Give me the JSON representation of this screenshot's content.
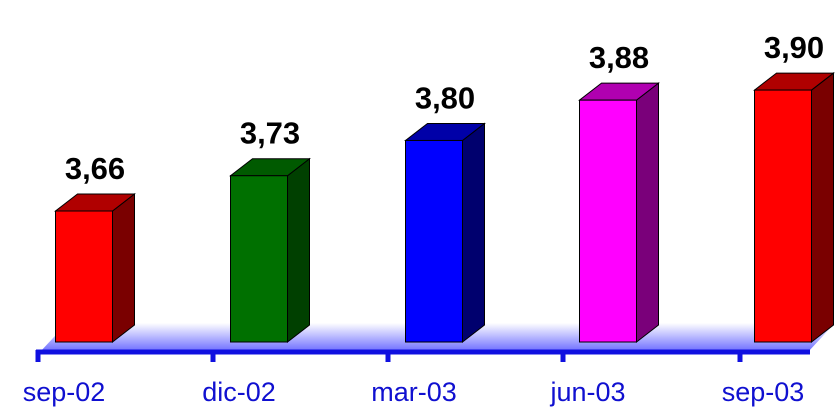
{
  "chart_data": {
    "type": "bar",
    "style": "3d-column",
    "categories": [
      "sep-02",
      "dic-02",
      "mar-03",
      "jun-03",
      "sep-03"
    ],
    "values": [
      3.66,
      3.73,
      3.8,
      3.88,
      3.9
    ],
    "value_labels": [
      "3,66",
      "3,73",
      "3,80",
      "3,88",
      "3,90"
    ],
    "bar_colors": [
      "#ff0000",
      "#007000",
      "#0000ff",
      "#ff00ff",
      "#ff0000"
    ],
    "bar_side_colors": [
      "#7a0000",
      "#004000",
      "#00006e",
      "#7a007a",
      "#7a0000"
    ],
    "bar_top_colors": [
      "#b00000",
      "#005a00",
      "#0000a8",
      "#b000b0",
      "#b00000"
    ],
    "axis_color": "#1010e0",
    "floor_color": "#7f7fff",
    "ylim": [
      3.4,
      3.92
    ],
    "grid": false,
    "legend": "none",
    "title": "",
    "xlabel": "",
    "ylabel": ""
  }
}
